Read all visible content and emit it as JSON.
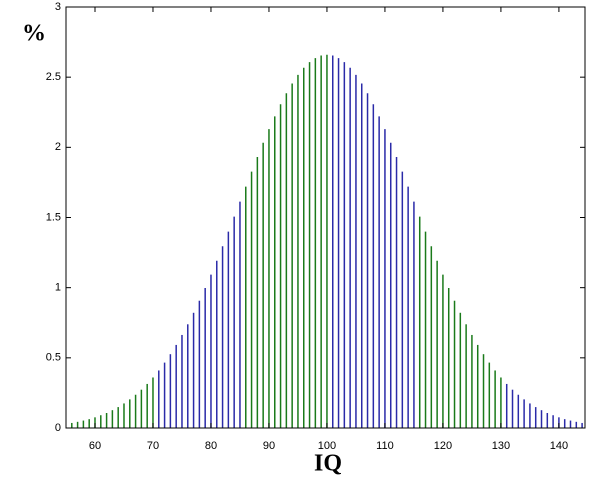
{
  "chart_data": {
    "type": "bar",
    "xlabel": "IQ",
    "ylabel": "%",
    "series": [
      {
        "color": "#1a7a1a",
        "x": [
          56,
          57,
          58,
          59,
          60,
          61,
          62,
          63,
          64,
          65,
          66,
          67,
          68,
          69,
          70,
          86,
          87,
          88,
          89,
          90,
          91,
          92,
          93,
          94,
          95,
          96,
          97,
          98,
          99,
          100,
          116,
          117,
          118,
          119,
          120,
          121,
          122,
          123,
          124,
          125,
          126,
          127,
          128,
          129,
          130
        ],
        "values": [
          0.036,
          0.044,
          0.053,
          0.063,
          0.076,
          0.091,
          0.107,
          0.127,
          0.149,
          0.175,
          0.204,
          0.237,
          0.273,
          0.314,
          0.36,
          1.72,
          1.827,
          1.931,
          2.033,
          2.13,
          2.221,
          2.307,
          2.385,
          2.455,
          2.516,
          2.567,
          2.607,
          2.636,
          2.654,
          2.66,
          1.506,
          1.399,
          1.295,
          1.192,
          1.093,
          0.998,
          0.907,
          0.821,
          0.739,
          0.663,
          0.592,
          0.526,
          0.466,
          0.41,
          0.36
        ]
      },
      {
        "color": "#2a2aa8",
        "x": [
          71,
          72,
          73,
          74,
          75,
          76,
          77,
          78,
          79,
          80,
          81,
          82,
          83,
          84,
          85,
          101,
          102,
          103,
          104,
          105,
          106,
          107,
          108,
          109,
          110,
          111,
          112,
          113,
          114,
          115,
          131,
          132,
          133,
          134,
          135,
          136,
          137,
          138,
          139,
          140,
          141,
          142,
          143,
          144
        ],
        "values": [
          0.41,
          0.466,
          0.526,
          0.592,
          0.663,
          0.739,
          0.821,
          0.907,
          0.998,
          1.093,
          1.192,
          1.295,
          1.399,
          1.506,
          1.613,
          2.654,
          2.636,
          2.607,
          2.567,
          2.516,
          2.455,
          2.385,
          2.307,
          2.221,
          2.13,
          2.033,
          1.931,
          1.827,
          1.72,
          1.613,
          0.314,
          0.273,
          0.237,
          0.204,
          0.175,
          0.149,
          0.127,
          0.107,
          0.091,
          0.076,
          0.063,
          0.053,
          0.044,
          0.036
        ]
      }
    ],
    "xlim": [
      55,
      144.5
    ],
    "xticks": [
      60,
      70,
      80,
      90,
      100,
      110,
      120,
      130,
      140
    ],
    "ylim": [
      0,
      3
    ],
    "yticks": [
      0,
      0.5,
      1,
      1.5,
      2,
      2.5,
      3
    ]
  }
}
